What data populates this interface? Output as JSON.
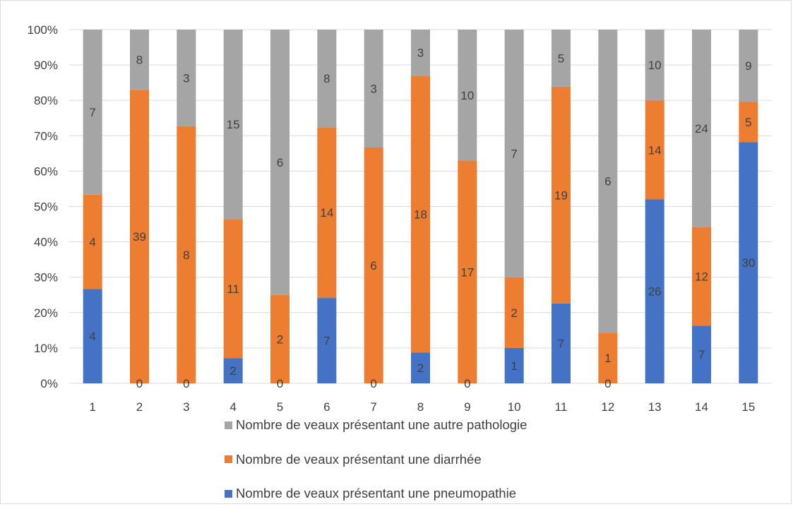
{
  "chart_data": {
    "type": "bar",
    "stacked": "percent",
    "categories": [
      "1",
      "2",
      "3",
      "4",
      "5",
      "6",
      "7",
      "8",
      "9",
      "10",
      "11",
      "12",
      "13",
      "14",
      "15"
    ],
    "y_ticks": [
      "0%",
      "10%",
      "20%",
      "30%",
      "40%",
      "50%",
      "60%",
      "70%",
      "80%",
      "90%",
      "100%"
    ],
    "ylim": [
      0,
      100
    ],
    "grid": true,
    "legend_position": "bottom",
    "series": [
      {
        "name": "Nombre de veaux présentant une pneumopathie",
        "color": "#4472C4",
        "values": [
          4,
          0,
          0,
          2,
          0,
          7,
          0,
          2,
          0,
          1,
          7,
          0,
          26,
          7,
          30
        ]
      },
      {
        "name": "Nombre de veaux présentant une diarrhée",
        "color": "#ED7D31",
        "values": [
          4,
          39,
          8,
          11,
          2,
          14,
          6,
          18,
          17,
          2,
          19,
          1,
          14,
          12,
          5
        ]
      },
      {
        "name": "Nombre de veaux présentant une autre pathologie",
        "color": "#A5A5A5",
        "values": [
          7,
          8,
          3,
          15,
          6,
          8,
          3,
          3,
          10,
          7,
          5,
          6,
          10,
          24,
          9
        ]
      }
    ]
  }
}
